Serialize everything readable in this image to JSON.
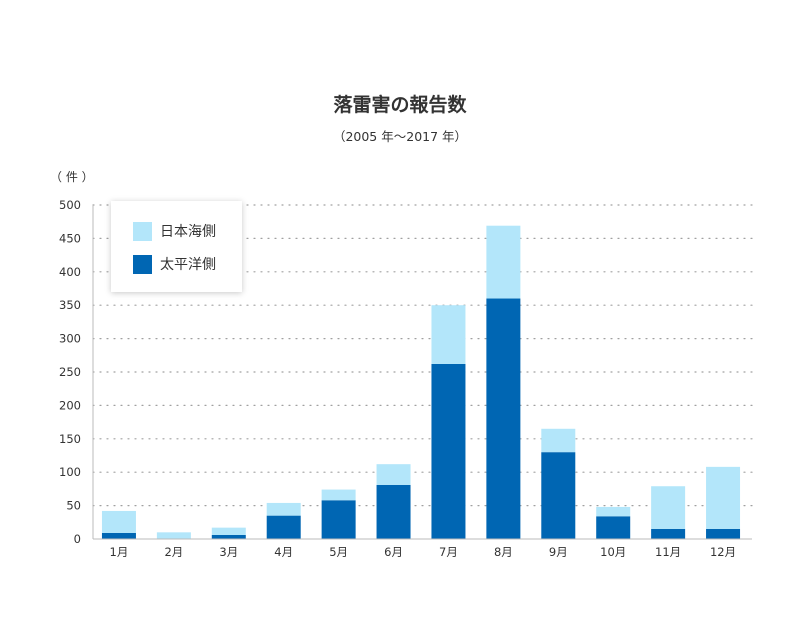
{
  "chart_data": {
    "type": "bar",
    "stacked": true,
    "title": "落雷害の報告数",
    "subtitle": "（2005 年〜2017 年）",
    "ylabel": "（ 件 ）",
    "categories": [
      "1月",
      "2月",
      "3月",
      "4月",
      "5月",
      "6月",
      "7月",
      "8月",
      "9月",
      "10月",
      "11月",
      "12月"
    ],
    "series": [
      {
        "name": "太平洋側",
        "color": "#0066b3",
        "values": [
          9,
          0,
          6,
          35,
          58,
          81,
          262,
          360,
          130,
          34,
          15,
          15
        ]
      },
      {
        "name": "日本海側",
        "color": "#b3e6fa",
        "values": [
          33,
          10,
          11,
          19,
          16,
          31,
          88,
          109,
          35,
          14,
          64,
          93
        ]
      }
    ],
    "ylim": [
      0,
      500
    ],
    "yticks": [
      0,
      50,
      100,
      150,
      200,
      250,
      300,
      350,
      400,
      450,
      500
    ],
    "grid": true,
    "legend_position": "top-left",
    "legend_order": [
      "日本海側",
      "太平洋側"
    ]
  }
}
